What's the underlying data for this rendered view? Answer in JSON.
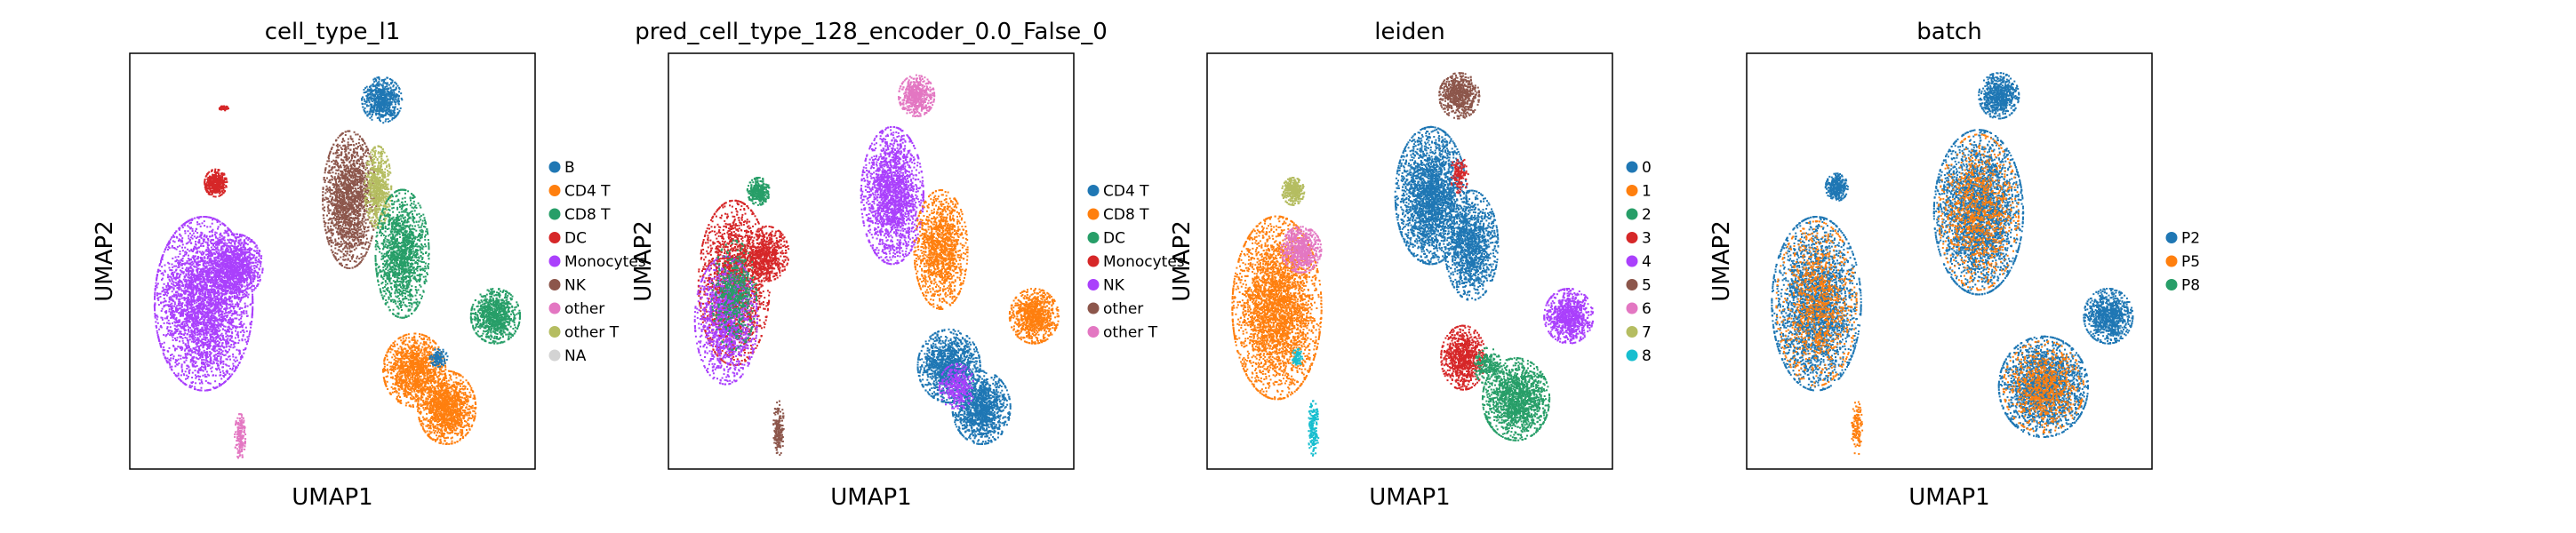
{
  "chart_data": [
    {
      "type": "scatter",
      "title": "cell_type_l1",
      "xlabel": "UMAP1",
      "ylabel": "UMAP2",
      "grid": false,
      "ticks": false,
      "legend_position": "right",
      "legend": [
        {
          "label": "B",
          "color": "#1f77b4"
        },
        {
          "label": "CD4 T",
          "color": "#ff7f0e"
        },
        {
          "label": "CD8 T",
          "color": "#279e68"
        },
        {
          "label": "DC",
          "color": "#d62728"
        },
        {
          "label": "Monocytes",
          "color": "#aa40fc"
        },
        {
          "label": "NK",
          "color": "#8c564b"
        },
        {
          "label": "other",
          "color": "#e377c2"
        },
        {
          "label": "other T",
          "color": "#b5bd61"
        },
        {
          "label": "NA",
          "color": "#d3d3d3"
        }
      ],
      "clusters": [
        {
          "label": "Monocytes",
          "color": "#aa40fc",
          "x": 0.18,
          "y": 0.6,
          "rx": 0.11,
          "ry": 0.19,
          "density": 1.6
        },
        {
          "label": "Monocytes",
          "color": "#aa40fc",
          "x": 0.26,
          "y": 0.51,
          "rx": 0.06,
          "ry": 0.07,
          "density": 0.5
        },
        {
          "label": "DC",
          "color": "#d62728",
          "x": 0.21,
          "y": 0.31,
          "rx": 0.025,
          "ry": 0.03,
          "density": 0.2
        },
        {
          "label": "DC",
          "color": "#d62728",
          "x": 0.23,
          "y": 0.13,
          "rx": 0.01,
          "ry": 0.005,
          "density": 0.03
        },
        {
          "label": "other",
          "color": "#e377c2",
          "x": 0.27,
          "y": 0.92,
          "rx": 0.012,
          "ry": 0.05,
          "density": 0.08
        },
        {
          "label": "B",
          "color": "#1f77b4",
          "x": 0.62,
          "y": 0.11,
          "rx": 0.045,
          "ry": 0.05,
          "density": 0.3
        },
        {
          "label": "NK",
          "color": "#8c564b",
          "x": 0.54,
          "y": 0.35,
          "rx": 0.06,
          "ry": 0.15,
          "density": 0.8
        },
        {
          "label": "other T",
          "color": "#b5bd61",
          "x": 0.61,
          "y": 0.32,
          "rx": 0.03,
          "ry": 0.09,
          "density": 0.3
        },
        {
          "label": "CD8 T",
          "color": "#279e68",
          "x": 0.67,
          "y": 0.48,
          "rx": 0.06,
          "ry": 0.14,
          "density": 0.7
        },
        {
          "label": "CD8 T",
          "color": "#279e68",
          "x": 0.9,
          "y": 0.63,
          "rx": 0.055,
          "ry": 0.06,
          "density": 0.4
        },
        {
          "label": "CD4 T",
          "color": "#ff7f0e",
          "x": 0.7,
          "y": 0.76,
          "rx": 0.07,
          "ry": 0.08,
          "density": 0.6
        },
        {
          "label": "CD4 T",
          "color": "#ff7f0e",
          "x": 0.78,
          "y": 0.85,
          "rx": 0.065,
          "ry": 0.08,
          "density": 0.6
        },
        {
          "label": "B",
          "color": "#1f77b4",
          "x": 0.76,
          "y": 0.73,
          "rx": 0.02,
          "ry": 0.02,
          "density": 0.05
        }
      ]
    },
    {
      "type": "scatter",
      "title": "pred_cell_type_128_encoder_0.0_False_0",
      "xlabel": "UMAP1",
      "ylabel": "UMAP2",
      "grid": false,
      "ticks": false,
      "legend_position": "right",
      "legend": [
        {
          "label": "CD4 T",
          "color": "#1f77b4"
        },
        {
          "label": "CD8 T",
          "color": "#ff7f0e"
        },
        {
          "label": "DC",
          "color": "#279e68"
        },
        {
          "label": "Monocytes",
          "color": "#d62728"
        },
        {
          "label": "NK",
          "color": "#aa40fc"
        },
        {
          "label": "other",
          "color": "#8c564b"
        },
        {
          "label": "other T",
          "color": "#e377c2"
        }
      ],
      "clusters": [
        {
          "label": "Monocytes",
          "color": "#d62728",
          "x": 0.16,
          "y": 0.55,
          "rx": 0.08,
          "ry": 0.18,
          "density": 0.9
        },
        {
          "label": "NK",
          "color": "#aa40fc",
          "x": 0.14,
          "y": 0.64,
          "rx": 0.07,
          "ry": 0.14,
          "density": 0.6
        },
        {
          "label": "DC",
          "color": "#279e68",
          "x": 0.16,
          "y": 0.58,
          "rx": 0.05,
          "ry": 0.12,
          "density": 0.25
        },
        {
          "label": "Monocytes",
          "color": "#d62728",
          "x": 0.24,
          "y": 0.48,
          "rx": 0.05,
          "ry": 0.06,
          "density": 0.3
        },
        {
          "label": "DC",
          "color": "#279e68",
          "x": 0.22,
          "y": 0.33,
          "rx": 0.025,
          "ry": 0.03,
          "density": 0.15
        },
        {
          "label": "other",
          "color": "#8c564b",
          "x": 0.27,
          "y": 0.9,
          "rx": 0.012,
          "ry": 0.06,
          "density": 0.08
        },
        {
          "label": "other T",
          "color": "#e377c2",
          "x": 0.61,
          "y": 0.1,
          "rx": 0.04,
          "ry": 0.045,
          "density": 0.25
        },
        {
          "label": "NK",
          "color": "#aa40fc",
          "x": 0.55,
          "y": 0.34,
          "rx": 0.07,
          "ry": 0.15,
          "density": 0.9
        },
        {
          "label": "CD8 T",
          "color": "#ff7f0e",
          "x": 0.67,
          "y": 0.47,
          "rx": 0.06,
          "ry": 0.13,
          "density": 0.6
        },
        {
          "label": "CD8 T",
          "color": "#ff7f0e",
          "x": 0.9,
          "y": 0.63,
          "rx": 0.055,
          "ry": 0.06,
          "density": 0.4
        },
        {
          "label": "CD4 T",
          "color": "#1f77b4",
          "x": 0.69,
          "y": 0.75,
          "rx": 0.07,
          "ry": 0.08,
          "density": 0.6
        },
        {
          "label": "CD4 T",
          "color": "#1f77b4",
          "x": 0.77,
          "y": 0.85,
          "rx": 0.065,
          "ry": 0.08,
          "density": 0.6
        },
        {
          "label": "NK",
          "color": "#aa40fc",
          "x": 0.71,
          "y": 0.8,
          "rx": 0.04,
          "ry": 0.05,
          "density": 0.15
        }
      ]
    },
    {
      "type": "scatter",
      "title": "leiden",
      "xlabel": "UMAP1",
      "ylabel": "UMAP2",
      "grid": false,
      "ticks": false,
      "legend_position": "right",
      "legend": [
        {
          "label": "0",
          "color": "#1f77b4"
        },
        {
          "label": "1",
          "color": "#ff7f0e"
        },
        {
          "label": "2",
          "color": "#279e68"
        },
        {
          "label": "3",
          "color": "#d62728"
        },
        {
          "label": "4",
          "color": "#aa40fc"
        },
        {
          "label": "5",
          "color": "#8c564b"
        },
        {
          "label": "6",
          "color": "#e377c2"
        },
        {
          "label": "7",
          "color": "#b5bd61"
        },
        {
          "label": "8",
          "color": "#17becf"
        }
      ],
      "clusters": [
        {
          "label": "1",
          "color": "#ff7f0e",
          "x": 0.17,
          "y": 0.61,
          "rx": 0.1,
          "ry": 0.2,
          "density": 1.5
        },
        {
          "label": "6",
          "color": "#e377c2",
          "x": 0.23,
          "y": 0.47,
          "rx": 0.045,
          "ry": 0.05,
          "density": 0.3
        },
        {
          "label": "7",
          "color": "#b5bd61",
          "x": 0.21,
          "y": 0.33,
          "rx": 0.025,
          "ry": 0.03,
          "density": 0.15
        },
        {
          "label": "8",
          "color": "#17becf",
          "x": 0.26,
          "y": 0.9,
          "rx": 0.012,
          "ry": 0.06,
          "density": 0.08
        },
        {
          "label": "8",
          "color": "#17becf",
          "x": 0.22,
          "y": 0.73,
          "rx": 0.012,
          "ry": 0.02,
          "density": 0.03
        },
        {
          "label": "5",
          "color": "#8c564b",
          "x": 0.62,
          "y": 0.1,
          "rx": 0.045,
          "ry": 0.05,
          "density": 0.3
        },
        {
          "label": "0",
          "color": "#1f77b4",
          "x": 0.55,
          "y": 0.34,
          "rx": 0.08,
          "ry": 0.15,
          "density": 1.2
        },
        {
          "label": "0",
          "color": "#1f77b4",
          "x": 0.65,
          "y": 0.46,
          "rx": 0.06,
          "ry": 0.12,
          "density": 0.6
        },
        {
          "label": "3",
          "color": "#d62728",
          "x": 0.62,
          "y": 0.29,
          "rx": 0.02,
          "ry": 0.04,
          "density": 0.06
        },
        {
          "label": "4",
          "color": "#aa40fc",
          "x": 0.89,
          "y": 0.63,
          "rx": 0.055,
          "ry": 0.06,
          "density": 0.4
        },
        {
          "label": "3",
          "color": "#d62728",
          "x": 0.63,
          "y": 0.73,
          "rx": 0.05,
          "ry": 0.07,
          "density": 0.4
        },
        {
          "label": "2",
          "color": "#279e68",
          "x": 0.76,
          "y": 0.83,
          "rx": 0.075,
          "ry": 0.09,
          "density": 0.7
        },
        {
          "label": "2",
          "color": "#279e68",
          "x": 0.69,
          "y": 0.75,
          "rx": 0.03,
          "ry": 0.04,
          "density": 0.1
        }
      ]
    },
    {
      "type": "scatter",
      "title": "batch",
      "xlabel": "UMAP1",
      "ylabel": "UMAP2",
      "grid": false,
      "ticks": false,
      "legend_position": "right",
      "legend": [
        {
          "label": "P2",
          "color": "#1f77b4"
        },
        {
          "label": "P5",
          "color": "#ff7f0e"
        },
        {
          "label": "P8",
          "color": "#279e68"
        }
      ],
      "clusters": [
        {
          "label": "P2",
          "color": "#1f77b4",
          "x": 0.17,
          "y": 0.6,
          "rx": 0.1,
          "ry": 0.19,
          "density": 1.2
        },
        {
          "label": "P5",
          "color": "#ff7f0e",
          "x": 0.17,
          "y": 0.6,
          "rx": 0.09,
          "ry": 0.18,
          "density": 0.45
        },
        {
          "label": "P2",
          "color": "#1f77b4",
          "x": 0.22,
          "y": 0.32,
          "rx": 0.025,
          "ry": 0.03,
          "density": 0.15
        },
        {
          "label": "P5",
          "color": "#ff7f0e",
          "x": 0.27,
          "y": 0.9,
          "rx": 0.012,
          "ry": 0.06,
          "density": 0.06
        },
        {
          "label": "P2",
          "color": "#1f77b4",
          "x": 0.62,
          "y": 0.1,
          "rx": 0.045,
          "ry": 0.05,
          "density": 0.3
        },
        {
          "label": "P2",
          "color": "#1f77b4",
          "x": 0.57,
          "y": 0.38,
          "rx": 0.1,
          "ry": 0.18,
          "density": 1.3
        },
        {
          "label": "P5",
          "color": "#ff7f0e",
          "x": 0.57,
          "y": 0.38,
          "rx": 0.09,
          "ry": 0.17,
          "density": 0.45
        },
        {
          "label": "P2",
          "color": "#1f77b4",
          "x": 0.89,
          "y": 0.63,
          "rx": 0.055,
          "ry": 0.06,
          "density": 0.4
        },
        {
          "label": "P2",
          "color": "#1f77b4",
          "x": 0.73,
          "y": 0.8,
          "rx": 0.1,
          "ry": 0.11,
          "density": 1.0
        },
        {
          "label": "P5",
          "color": "#ff7f0e",
          "x": 0.73,
          "y": 0.8,
          "rx": 0.09,
          "ry": 0.1,
          "density": 0.35
        }
      ]
    }
  ]
}
